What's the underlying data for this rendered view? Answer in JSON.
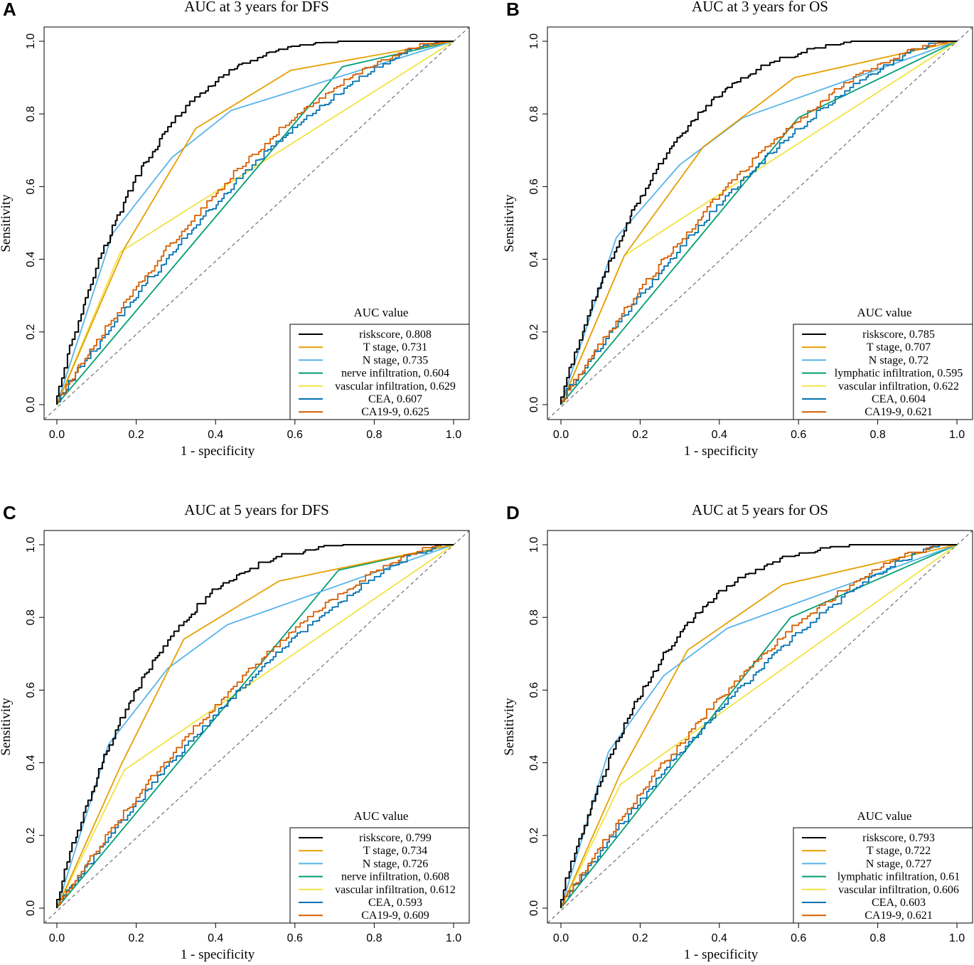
{
  "colors": {
    "riskscore": "#000000",
    "t_stage": "#E69F00",
    "n_stage": "#56B4E9",
    "infiltration_green": "#009E73",
    "vascular": "#F0E442",
    "cea": "#0072B2",
    "ca199": "#D55E00",
    "diagonal": "#555555"
  },
  "legend_title": "AUC value",
  "chart_data": [
    {
      "letter": "A",
      "type": "line",
      "title": "AUC at 3 years for DFS",
      "xlabel": "1 - specificity",
      "ylabel": "Sensitivity",
      "xlim": [
        0,
        1
      ],
      "ylim": [
        0,
        1
      ],
      "xticks": [
        "0.0",
        "0.2",
        "0.4",
        "0.6",
        "0.8",
        "1.0"
      ],
      "yticks": [
        "0.0",
        "0.2",
        "0.4",
        "0.6",
        "0.8",
        "1.0"
      ],
      "series": [
        {
          "name": "riskscore, 0.808",
          "color": "riskscore",
          "kind": "curve",
          "auc": 0.808
        },
        {
          "name": "T stage, 0.731",
          "color": "t_stage",
          "kind": "points",
          "points": [
            [
              0,
              0
            ],
            [
              0.17,
              0.43
            ],
            [
              0.35,
              0.76
            ],
            [
              0.59,
              0.92
            ],
            [
              1,
              1
            ]
          ]
        },
        {
          "name": "N stage, 0.735",
          "color": "n_stage",
          "kind": "points",
          "points": [
            [
              0,
              0
            ],
            [
              0.14,
              0.47
            ],
            [
              0.29,
              0.68
            ],
            [
              0.44,
              0.81
            ],
            [
              1,
              1
            ]
          ]
        },
        {
          "name": "nerve infiltration, 0.604",
          "color": "infiltration_green",
          "kind": "points",
          "points": [
            [
              0,
              0
            ],
            [
              0.72,
              0.93
            ],
            [
              1,
              1
            ]
          ]
        },
        {
          "name": "vascular infiltration, 0.629",
          "color": "vascular",
          "kind": "points",
          "points": [
            [
              0,
              0
            ],
            [
              0.16,
              0.42
            ],
            [
              1,
              1
            ]
          ]
        },
        {
          "name": "CEA, 0.607",
          "color": "cea",
          "kind": "curve",
          "auc": 0.607
        },
        {
          "name": "CA19-9, 0.625",
          "color": "ca199",
          "kind": "curve",
          "auc": 0.625
        }
      ]
    },
    {
      "letter": "B",
      "type": "line",
      "title": "AUC at 3 years for OS",
      "xlabel": "1 - specificity",
      "ylabel": "Sensitivity",
      "xlim": [
        0,
        1
      ],
      "ylim": [
        0,
        1
      ],
      "xticks": [
        "0.0",
        "0.2",
        "0.4",
        "0.6",
        "0.8",
        "1.0"
      ],
      "yticks": [
        "0.0",
        "0.2",
        "0.4",
        "0.6",
        "0.8",
        "1.0"
      ],
      "series": [
        {
          "name": "riskscore, 0.785",
          "color": "riskscore",
          "kind": "curve",
          "auc": 0.785
        },
        {
          "name": "T stage, 0.707",
          "color": "t_stage",
          "kind": "points",
          "points": [
            [
              0,
              0
            ],
            [
              0.16,
              0.41
            ],
            [
              0.36,
              0.71
            ],
            [
              0.59,
              0.9
            ],
            [
              1,
              1
            ]
          ]
        },
        {
          "name": "N stage, 0.72",
          "color": "n_stage",
          "kind": "points",
          "points": [
            [
              0,
              0
            ],
            [
              0.14,
              0.46
            ],
            [
              0.3,
              0.66
            ],
            [
              0.46,
              0.79
            ],
            [
              1,
              1
            ]
          ]
        },
        {
          "name": "lymphatic infiltration, 0.595",
          "color": "infiltration_green",
          "kind": "points",
          "points": [
            [
              0,
              0
            ],
            [
              0.6,
              0.79
            ],
            [
              1,
              1
            ]
          ]
        },
        {
          "name": "vascular infiltration, 0.622",
          "color": "vascular",
          "kind": "points",
          "points": [
            [
              0,
              0
            ],
            [
              0.16,
              0.41
            ],
            [
              1,
              1
            ]
          ]
        },
        {
          "name": "CEA, 0.604",
          "color": "cea",
          "kind": "curve",
          "auc": 0.604
        },
        {
          "name": "CA19-9, 0.621",
          "color": "ca199",
          "kind": "curve",
          "auc": 0.621
        }
      ]
    },
    {
      "letter": "C",
      "type": "line",
      "title": "AUC at 5 years for DFS",
      "xlabel": "1 - specificity",
      "ylabel": "Sensitivity",
      "xlim": [
        0,
        1
      ],
      "ylim": [
        0,
        1
      ],
      "xticks": [
        "0.0",
        "0.2",
        "0.4",
        "0.6",
        "0.8",
        "1.0"
      ],
      "yticks": [
        "0.0",
        "0.2",
        "0.4",
        "0.6",
        "0.8",
        "1.0"
      ],
      "series": [
        {
          "name": "riskscore, 0.799",
          "color": "riskscore",
          "kind": "curve",
          "auc": 0.799
        },
        {
          "name": "T stage, 0.734",
          "color": "t_stage",
          "kind": "points",
          "points": [
            [
              0,
              0
            ],
            [
              0.16,
              0.39
            ],
            [
              0.32,
              0.74
            ],
            [
              0.56,
              0.9
            ],
            [
              1,
              1
            ]
          ]
        },
        {
          "name": "N stage, 0.726",
          "color": "n_stage",
          "kind": "points",
          "points": [
            [
              0,
              0
            ],
            [
              0.13,
              0.45
            ],
            [
              0.28,
              0.66
            ],
            [
              0.43,
              0.78
            ],
            [
              1,
              1
            ]
          ]
        },
        {
          "name": "nerve infiltration, 0.608",
          "color": "infiltration_green",
          "kind": "points",
          "points": [
            [
              0,
              0
            ],
            [
              0.71,
              0.93
            ],
            [
              1,
              1
            ]
          ]
        },
        {
          "name": "vascular infiltration, 0.612",
          "color": "vascular",
          "kind": "points",
          "points": [
            [
              0,
              0
            ],
            [
              0.17,
              0.38
            ],
            [
              1,
              1
            ]
          ]
        },
        {
          "name": "CEA, 0.593",
          "color": "cea",
          "kind": "curve",
          "auc": 0.593
        },
        {
          "name": "CA19-9, 0.609",
          "color": "ca199",
          "kind": "curve",
          "auc": 0.609
        }
      ]
    },
    {
      "letter": "D",
      "type": "line",
      "title": "AUC at 5 years for OS",
      "xlabel": "1 - specificity",
      "ylabel": "Sensitivity",
      "xlim": [
        0,
        1
      ],
      "ylim": [
        0,
        1
      ],
      "xticks": [
        "0.0",
        "0.2",
        "0.4",
        "0.6",
        "0.8",
        "1.0"
      ],
      "yticks": [
        "0.0",
        "0.2",
        "0.4",
        "0.6",
        "0.8",
        "1.0"
      ],
      "series": [
        {
          "name": "riskscore, 0.793",
          "color": "riskscore",
          "kind": "curve",
          "auc": 0.793
        },
        {
          "name": "T stage, 0.722",
          "color": "t_stage",
          "kind": "points",
          "points": [
            [
              0,
              0
            ],
            [
              0.15,
              0.37
            ],
            [
              0.32,
              0.71
            ],
            [
              0.56,
              0.89
            ],
            [
              1,
              1
            ]
          ]
        },
        {
          "name": "N stage, 0.727",
          "color": "n_stage",
          "kind": "points",
          "points": [
            [
              0,
              0
            ],
            [
              0.12,
              0.43
            ],
            [
              0.26,
              0.64
            ],
            [
              0.42,
              0.77
            ],
            [
              1,
              1
            ]
          ]
        },
        {
          "name": "lymphatic infiltration, 0.61",
          "color": "infiltration_green",
          "kind": "points",
          "points": [
            [
              0,
              0
            ],
            [
              0.58,
              0.8
            ],
            [
              1,
              1
            ]
          ]
        },
        {
          "name": "vascular infiltration, 0.606",
          "color": "vascular",
          "kind": "points",
          "points": [
            [
              0,
              0
            ],
            [
              0.15,
              0.34
            ],
            [
              1,
              1
            ]
          ]
        },
        {
          "name": "CEA, 0.603",
          "color": "cea",
          "kind": "curve",
          "auc": 0.603
        },
        {
          "name": "CA19-9, 0.621",
          "color": "ca199",
          "kind": "curve",
          "auc": 0.621
        }
      ]
    }
  ]
}
